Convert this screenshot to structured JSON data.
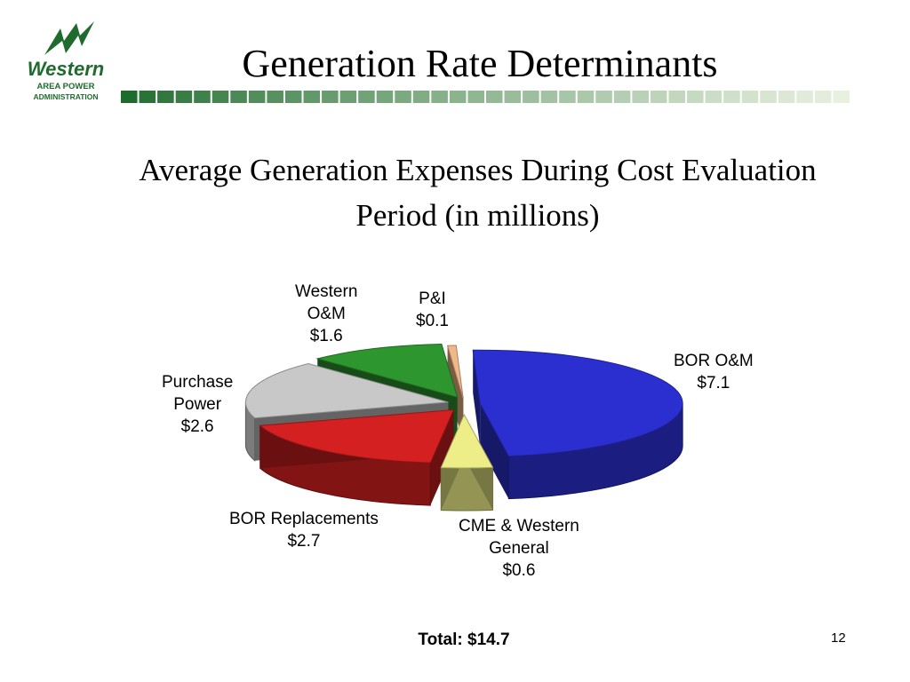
{
  "slide": {
    "title": "Generation Rate Determinants",
    "subtitle": "Average Generation Expenses During Cost Evaluation Period (in millions)",
    "total": "Total:  $14.7",
    "page_number": "12"
  },
  "logo": {
    "word": "Western",
    "line1": "AREA POWER",
    "line2": "ADMINISTRATION",
    "color": "#1f6b2e"
  },
  "chart_data": {
    "type": "pie",
    "title": "Average Generation Expenses During Cost Evaluation Period (in millions)",
    "unit": "$ millions",
    "total": 14.7,
    "slices": [
      {
        "label_lines": [
          "BOR O&M",
          "$7.1"
        ],
        "value": 7.1,
        "color": "#2b2fd0"
      },
      {
        "label_lines": [
          "CME & Western",
          "General",
          "$0.6"
        ],
        "value": 0.6,
        "color": "#eeee88"
      },
      {
        "label_lines": [
          "BOR Replacements",
          "$2.7"
        ],
        "value": 2.7,
        "color": "#d42020"
      },
      {
        "label_lines": [
          "Purchase",
          "Power",
          "$2.6"
        ],
        "value": 2.6,
        "color": "#c8c8c8"
      },
      {
        "label_lines": [
          "Western",
          "O&M",
          "$1.6"
        ],
        "value": 1.6,
        "color": "#2e962e"
      },
      {
        "label_lines": [
          "P&I",
          "$0.1"
        ],
        "value": 0.1,
        "color": "#f0b888"
      }
    ]
  }
}
